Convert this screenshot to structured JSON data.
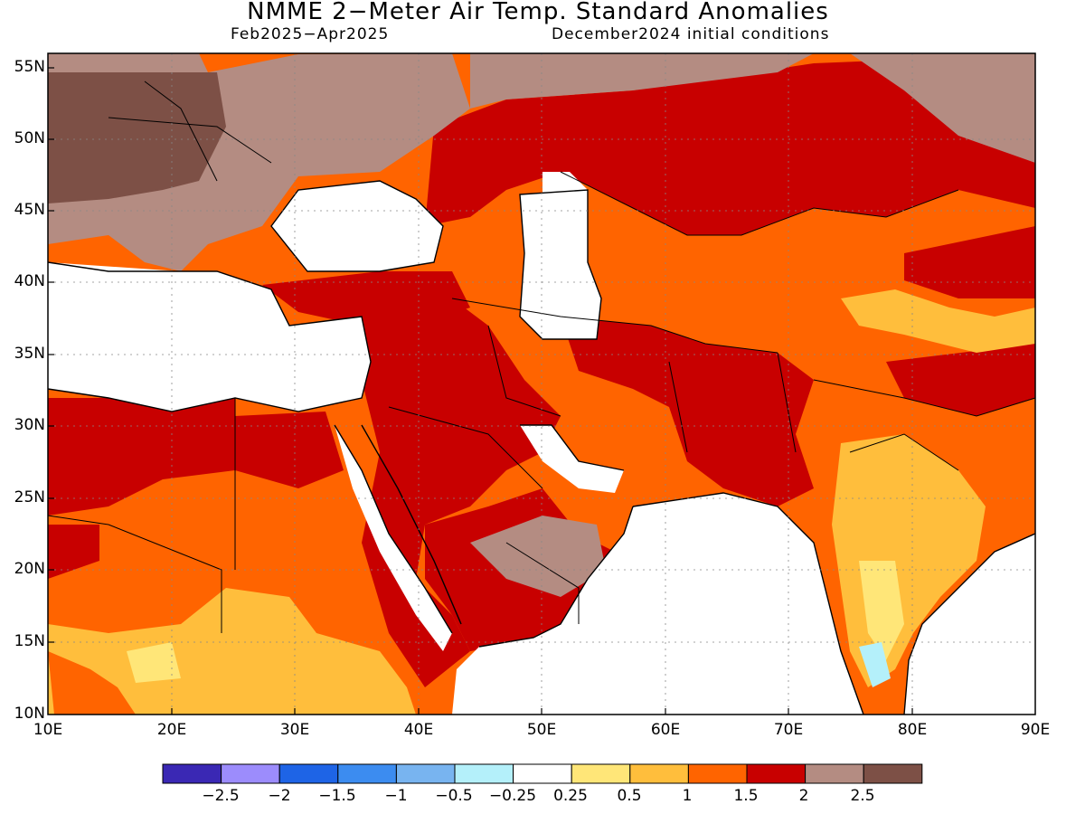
{
  "title": "NMME 2−Meter Air Temp. Standard Anomalies",
  "subtitle_left": "Feb2025−Apr2025",
  "subtitle_right": "December2024 initial conditions",
  "lat_labels": [
    "55N",
    "50N",
    "45N",
    "40N",
    "35N",
    "30N",
    "25N",
    "20N",
    "15N",
    "10N"
  ],
  "lon_labels": [
    "10E",
    "20E",
    "30E",
    "40E",
    "50E",
    "60E",
    "70E",
    "80E",
    "90E"
  ],
  "colorbar": {
    "colors": [
      "#3a28b4",
      "#9c8cfc",
      "#1e64e6",
      "#3c8cf0",
      "#78b4f0",
      "#b4f0fa",
      "#ffffff",
      "#ffe678",
      "#ffbe3c",
      "#ff6400",
      "#c80000",
      "#b48c82",
      "#7d5046"
    ],
    "labels": [
      "−2.5",
      "−2",
      "−1.5",
      "−1",
      "−0.5",
      "−0.25",
      "0.25",
      "0.5",
      "1",
      "1.5",
      "2",
      "2.5"
    ]
  },
  "legend_colors": {
    "white": "#ffffff",
    "light_yellow": "#ffe678",
    "yellow_orange": "#ffbe3c",
    "orange": "#ff6400",
    "red": "#c80000",
    "light_brown": "#b48c82",
    "dark_brown": "#7d5046",
    "light_cyan": "#b4f0fa"
  }
}
